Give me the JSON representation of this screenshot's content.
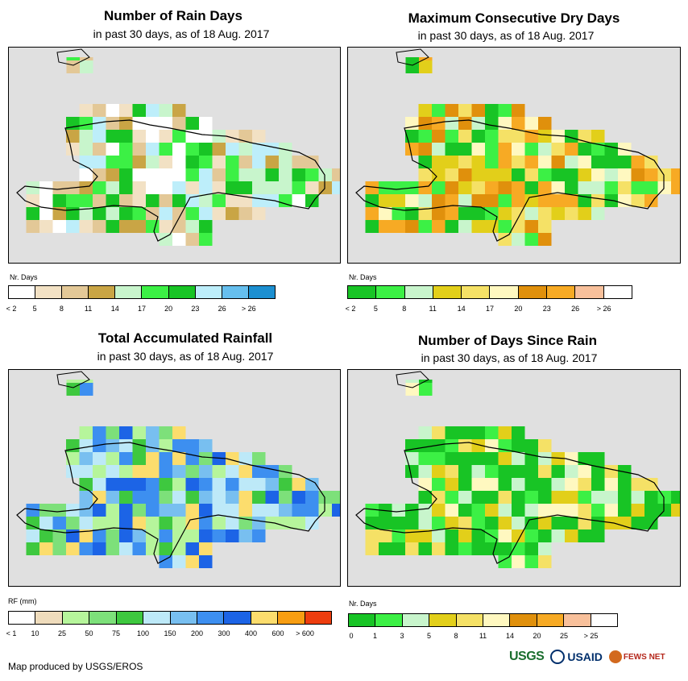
{
  "footer": "Map produced by USGS/EROS",
  "logos": {
    "usgs": "USGS",
    "usaid": "USAID",
    "fews": "FEWS NET"
  },
  "panels": [
    {
      "title": "Number of Rain Days",
      "subtitle": "in past 30 days, as of 18 Aug. 2017",
      "legend_title": "Nr. Days",
      "legend_colors": [
        "#ffffff",
        "#f2e1c4",
        "#e3c897",
        "#c9a545",
        "#c8f5cc",
        "#3cf045",
        "#18c425",
        "#bdeefa",
        "#66bfee",
        "#1c8fd0"
      ],
      "legend_ticks": [
        "< 2",
        "5",
        "8",
        "11",
        "14",
        "17",
        "20",
        "23",
        "26",
        "> 26"
      ]
    },
    {
      "title": "Maximum Consecutive Dry Days",
      "subtitle": "in past 30 days, as of 18 Aug. 2017",
      "legend_title": "Nr. Days",
      "legend_colors": [
        "#18c425",
        "#3cf045",
        "#c8f5cc",
        "#e2cf1a",
        "#f5e166",
        "#fff8c0",
        "#e0900c",
        "#f7aa24",
        "#f8c09b",
        "#ffffff"
      ],
      "legend_ticks": [
        "< 2",
        "5",
        "8",
        "11",
        "14",
        "17",
        "20",
        "23",
        "26",
        "> 26"
      ]
    },
    {
      "title": "Total Accumulated Rainfall",
      "subtitle": "in past 30 days, as of 18 Aug. 2017",
      "legend_title": "RF (mm)",
      "legend_colors": [
        "#ffffff",
        "#efdcbc",
        "#b6f59b",
        "#7de07a",
        "#3ec83f",
        "#bde9f8",
        "#78bff0",
        "#3d8ff0",
        "#1c64e6",
        "#fcdd6d",
        "#f89e12",
        "#ee3d0e"
      ],
      "legend_ticks": [
        "< 1",
        "10",
        "25",
        "50",
        "75",
        "100",
        "150",
        "200",
        "300",
        "400",
        "600",
        "> 600"
      ]
    },
    {
      "title": "Number of Days Since Rain",
      "subtitle": "in past 30 days, as of 18 Aug. 2017",
      "legend_title": "Nr. Days",
      "legend_colors": [
        "#18c425",
        "#3cf045",
        "#c8f5cc",
        "#e2cf1a",
        "#f5e166",
        "#fff8c0",
        "#e0900c",
        "#f7aa24",
        "#f8c09b",
        "#ffffff"
      ],
      "legend_ticks": [
        "0",
        "1",
        "3",
        "5",
        "8",
        "11",
        "14",
        "20",
        "25",
        "> 25"
      ]
    }
  ]
}
